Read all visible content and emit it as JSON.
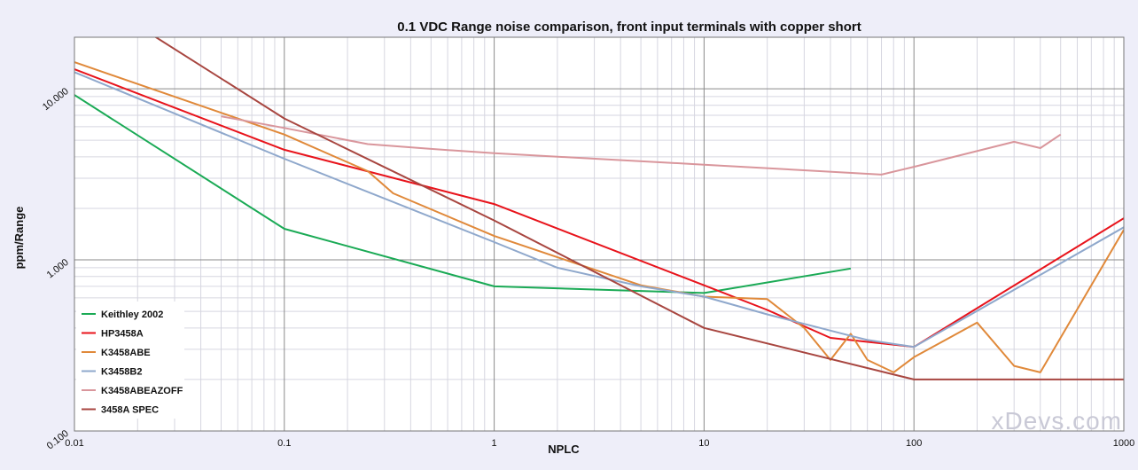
{
  "chart_data": {
    "type": "line",
    "title": "0.1 VDC Range noise comparison, front input terminals with copper short",
    "xlabel": "NPLC",
    "ylabel": "ppm/Range",
    "x_scale": "log",
    "y_scale": "log",
    "xlim": [
      0.01,
      1000
    ],
    "ylim": [
      0.1,
      20
    ],
    "x_ticks": [
      0.01,
      0.1,
      1,
      10,
      100,
      1000
    ],
    "x_tick_labels": [
      "0.01",
      "0.1",
      "1",
      "10",
      "100",
      "1000"
    ],
    "y_ticks": [
      0.1,
      1,
      10
    ],
    "y_tick_labels": [
      "0.100",
      "1.000",
      "10.000"
    ],
    "grid": true,
    "legend_position": "bottom-left",
    "watermark": "xDevs.com",
    "series": [
      {
        "name": "Keithley 2002",
        "color": "#1aaa55",
        "x": [
          0.01,
          0.1,
          1,
          10,
          50
        ],
        "y": [
          9.2,
          1.52,
          0.7,
          0.64,
          0.89
        ]
      },
      {
        "name": "HP3458A",
        "color": "#e8131b",
        "x": [
          0.01,
          0.1,
          1,
          10,
          20,
          40,
          100,
          1000
        ],
        "y": [
          13.0,
          4.4,
          2.12,
          0.71,
          0.51,
          0.35,
          0.31,
          1.75
        ]
      },
      {
        "name": "K3458ABE",
        "color": "#e0893a",
        "x": [
          0.01,
          0.1,
          0.25,
          0.33,
          1,
          5,
          10,
          20,
          30,
          40,
          50,
          60,
          80,
          100,
          200,
          300,
          400,
          1000
        ],
        "y": [
          14.3,
          5.4,
          3.3,
          2.45,
          1.38,
          0.71,
          0.61,
          0.59,
          0.4,
          0.26,
          0.37,
          0.26,
          0.22,
          0.27,
          0.43,
          0.24,
          0.22,
          1.5
        ]
      },
      {
        "name": "K3458B2",
        "color": "#8fa8cc",
        "x": [
          0.01,
          0.1,
          1,
          2,
          5,
          10,
          20,
          50,
          60,
          100,
          1000
        ],
        "y": [
          12.5,
          3.9,
          1.27,
          0.9,
          0.7,
          0.61,
          0.48,
          0.36,
          0.34,
          0.31,
          1.55
        ]
      },
      {
        "name": "K3458ABEAZOFF",
        "color": "#d9969c",
        "x": [
          0.05,
          0.1,
          0.25,
          0.5,
          1,
          10,
          70,
          100,
          300,
          400,
          500
        ],
        "y": [
          6.9,
          5.9,
          4.75,
          4.45,
          4.2,
          3.6,
          3.15,
          3.5,
          4.9,
          4.5,
          5.4
        ]
      },
      {
        "name": "3458A SPEC",
        "color": "#a84640",
        "x": [
          0.01,
          0.1,
          1,
          10,
          100,
          1000
        ],
        "y": [
          40,
          6.7,
          1.7,
          0.4,
          0.2,
          0.2
        ]
      }
    ]
  }
}
